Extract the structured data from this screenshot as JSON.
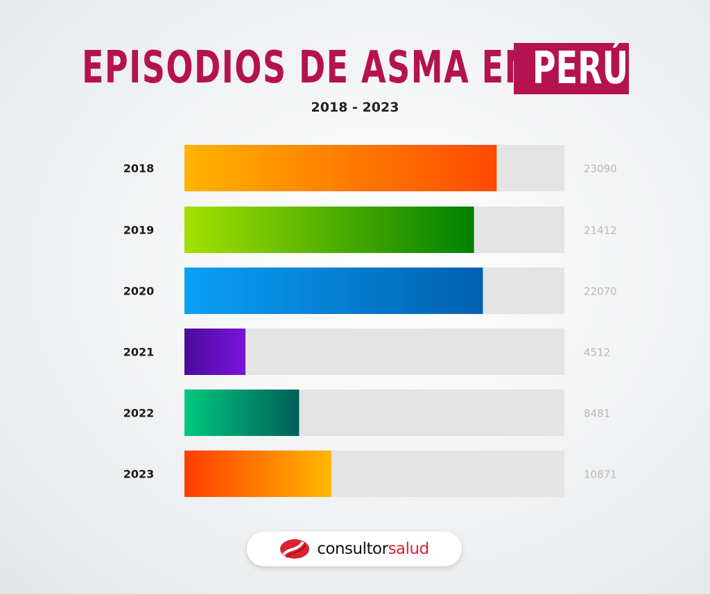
{
  "header": {
    "title_main": "EPISODIOS DE ASMA EN",
    "title_highlight": "PERÚ",
    "subtitle": "2018 - 2023"
  },
  "colors": {
    "title": "#b4134f",
    "track": "#e4e4e4",
    "value_text": "#b8b8b8"
  },
  "chart_data": {
    "type": "bar",
    "orientation": "horizontal",
    "title": "EPISODIOS DE ASMA EN PERÚ",
    "subtitle": "2018 - 2023",
    "categories": [
      "2018",
      "2019",
      "2020",
      "2021",
      "2022",
      "2023"
    ],
    "values": [
      23090,
      21412,
      22070,
      4512,
      8481,
      10871
    ],
    "value_labels": [
      "23090",
      "21412",
      "22070",
      "4512",
      "8481",
      "10871"
    ],
    "xlim": [
      0,
      28100
    ],
    "grid": false,
    "bar_gradients": [
      [
        "#ffb300",
        "#ff4a00"
      ],
      [
        "#a3e000",
        "#008000"
      ],
      [
        "#0aa0f5",
        "#0060b0"
      ],
      [
        "#4b0a9a",
        "#7a14dd"
      ],
      [
        "#00c97f",
        "#005e58"
      ],
      [
        "#ff3d00",
        "#ffb800"
      ]
    ]
  },
  "logo": {
    "text_dark": "consultor",
    "text_red": "salud"
  }
}
